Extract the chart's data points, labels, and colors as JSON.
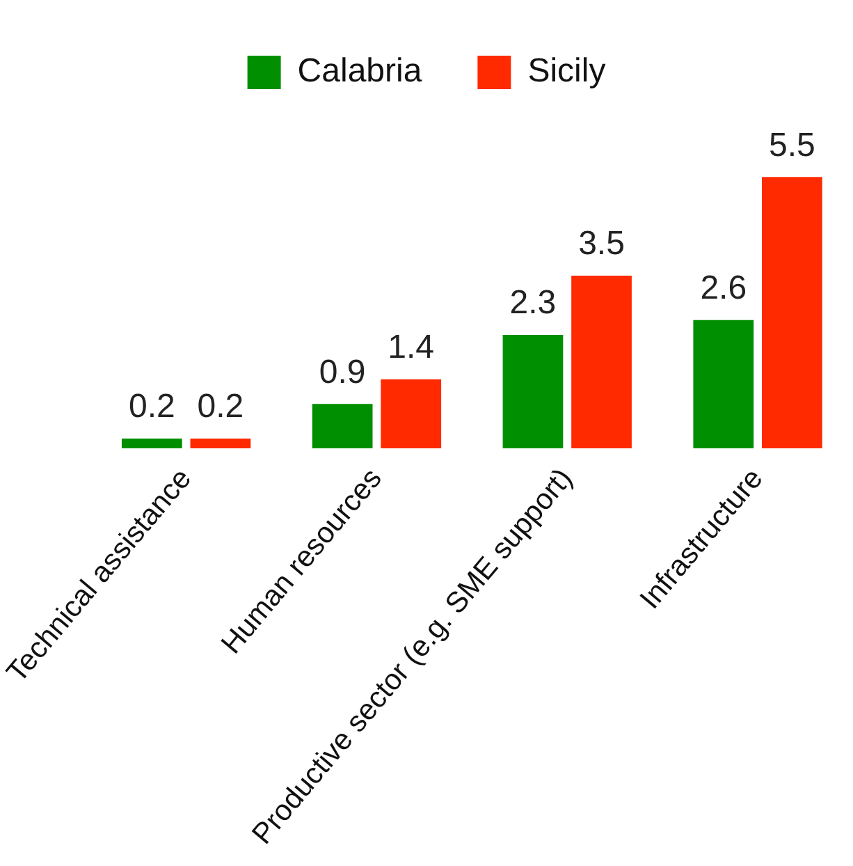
{
  "chart_data": {
    "type": "bar",
    "categories": [
      "Technical assistance",
      "Human resources",
      "Productive sector (e.g. SME support)",
      "Infrastructure"
    ],
    "series": [
      {
        "name": "Calabria",
        "color": "#008f00",
        "values": [
          0.2,
          0.9,
          2.3,
          2.6
        ]
      },
      {
        "name": "Sicily",
        "color": "#ff2a00",
        "values": [
          0.2,
          1.4,
          3.5,
          5.5
        ]
      }
    ],
    "data_labels": true,
    "legend": "top",
    "grid": false
  }
}
